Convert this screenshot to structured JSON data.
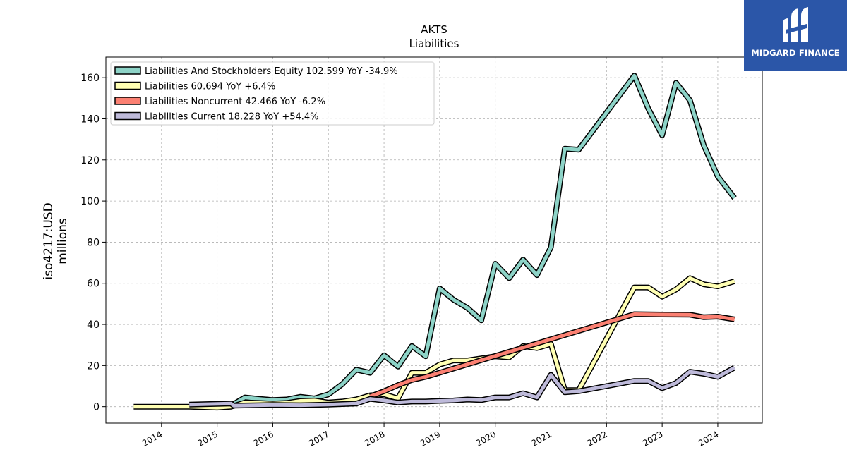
{
  "chart_data": {
    "type": "line",
    "title": "AKTS",
    "subtitle": "Liabilities",
    "ylabel": "iso4217:USD\nmillions",
    "ylim": [
      -8,
      170
    ],
    "xlim": [
      2013.0,
      2024.8
    ],
    "yticks": [
      0,
      20,
      40,
      60,
      80,
      100,
      120,
      140,
      160
    ],
    "xticks": [
      2014,
      2015,
      2016,
      2017,
      2018,
      2019,
      2020,
      2021,
      2022,
      2023,
      2024
    ],
    "grid": true,
    "legend_position": "top-left",
    "series": [
      {
        "name": "Liabilities And Stockholders Equity  102.599 YoY -34.9%",
        "color": "#8dd3c7",
        "points": [
          [
            2015.0,
            1.0
          ],
          [
            2015.25,
            0.5
          ],
          [
            2015.5,
            4.5
          ],
          [
            2015.75,
            3.8
          ],
          [
            2016.0,
            3.2
          ],
          [
            2016.25,
            3.5
          ],
          [
            2016.5,
            4.8
          ],
          [
            2016.75,
            4.0
          ],
          [
            2017.0,
            6.0
          ],
          [
            2017.25,
            11.0
          ],
          [
            2017.5,
            18.0
          ],
          [
            2017.75,
            16.5
          ],
          [
            2018.0,
            25.0
          ],
          [
            2018.25,
            19.5
          ],
          [
            2018.5,
            29.5
          ],
          [
            2018.75,
            24.5
          ],
          [
            2019.0,
            57.5
          ],
          [
            2019.25,
            52.0
          ],
          [
            2019.5,
            48.0
          ],
          [
            2019.75,
            42.0
          ],
          [
            2020.0,
            69.5
          ],
          [
            2020.25,
            62.5
          ],
          [
            2020.5,
            71.5
          ],
          [
            2020.75,
            64.0
          ],
          [
            2021.0,
            77.5
          ],
          [
            2021.25,
            125.5
          ],
          [
            2021.5,
            125.0
          ],
          [
            2022.5,
            161.0
          ],
          [
            2022.75,
            145.0
          ],
          [
            2023.0,
            132.0
          ],
          [
            2023.25,
            157.5
          ],
          [
            2023.5,
            149.0
          ],
          [
            2023.75,
            127.0
          ],
          [
            2024.0,
            112.0
          ],
          [
            2024.3,
            101.5
          ]
        ]
      },
      {
        "name": "Liabilities  60.694 YoY +6.4%",
        "color": "#ffffb3",
        "points": [
          [
            2013.5,
            0.0
          ],
          [
            2014.5,
            0.0
          ],
          [
            2015.0,
            -0.5
          ],
          [
            2015.25,
            0.0
          ],
          [
            2015.5,
            2.0
          ],
          [
            2015.75,
            1.8
          ],
          [
            2016.0,
            1.5
          ],
          [
            2016.25,
            1.8
          ],
          [
            2016.5,
            2.8
          ],
          [
            2016.75,
            3.0
          ],
          [
            2017.0,
            2.0
          ],
          [
            2017.25,
            2.5
          ],
          [
            2017.5,
            3.5
          ],
          [
            2017.75,
            5.5
          ],
          [
            2018.0,
            6.0
          ],
          [
            2018.25,
            4.0
          ],
          [
            2018.5,
            16.5
          ],
          [
            2018.75,
            16.5
          ],
          [
            2019.0,
            20.5
          ],
          [
            2019.25,
            22.5
          ],
          [
            2019.5,
            22.5
          ],
          [
            2019.75,
            23.5
          ],
          [
            2020.0,
            24.5
          ],
          [
            2020.25,
            24.0
          ],
          [
            2020.5,
            29.5
          ],
          [
            2020.75,
            28.5
          ],
          [
            2021.0,
            30.5
          ],
          [
            2021.25,
            8.0
          ],
          [
            2021.5,
            8.0
          ],
          [
            2022.5,
            58.0
          ],
          [
            2022.75,
            58.0
          ],
          [
            2023.0,
            53.5
          ],
          [
            2023.25,
            57.0
          ],
          [
            2023.5,
            62.5
          ],
          [
            2023.75,
            59.5
          ],
          [
            2024.0,
            58.5
          ],
          [
            2024.3,
            61.0
          ]
        ]
      },
      {
        "name": "Liabilities Noncurrent  42.466 YoY -6.2%",
        "color": "#fb8072",
        "points": [
          [
            2017.75,
            5.0
          ],
          [
            2018.0,
            7.5
          ],
          [
            2018.25,
            10.5
          ],
          [
            2018.5,
            13.0
          ],
          [
            2018.75,
            14.5
          ],
          [
            2022.5,
            45.0
          ],
          [
            2023.0,
            44.8
          ],
          [
            2023.5,
            44.7
          ],
          [
            2023.75,
            43.5
          ],
          [
            2024.0,
            43.8
          ],
          [
            2024.3,
            42.5
          ]
        ]
      },
      {
        "name": "Liabilities Current  18.228 YoY +54.4%",
        "color": "#bebada",
        "points": [
          [
            2014.5,
            1.0
          ],
          [
            2015.25,
            1.5
          ],
          [
            2015.3,
            0.5
          ],
          [
            2016.0,
            0.8
          ],
          [
            2016.5,
            0.7
          ],
          [
            2017.0,
            1.0
          ],
          [
            2017.5,
            1.5
          ],
          [
            2017.75,
            3.8
          ],
          [
            2018.0,
            3.0
          ],
          [
            2018.25,
            2.0
          ],
          [
            2018.5,
            2.5
          ],
          [
            2018.75,
            2.5
          ],
          [
            2019.0,
            2.8
          ],
          [
            2019.25,
            3.0
          ],
          [
            2019.5,
            3.5
          ],
          [
            2019.75,
            3.2
          ],
          [
            2020.0,
            4.5
          ],
          [
            2020.25,
            4.5
          ],
          [
            2020.5,
            6.5
          ],
          [
            2020.75,
            4.5
          ],
          [
            2021.0,
            15.5
          ],
          [
            2021.25,
            7.0
          ],
          [
            2021.5,
            7.5
          ],
          [
            2022.5,
            12.5
          ],
          [
            2022.75,
            12.5
          ],
          [
            2023.0,
            9.0
          ],
          [
            2023.25,
            11.5
          ],
          [
            2023.5,
            17.0
          ],
          [
            2023.75,
            16.0
          ],
          [
            2024.0,
            14.5
          ],
          [
            2024.3,
            19.0
          ]
        ]
      }
    ]
  },
  "logo": {
    "text": "MIDGARD FINANCE",
    "background": "#2b56a8"
  }
}
